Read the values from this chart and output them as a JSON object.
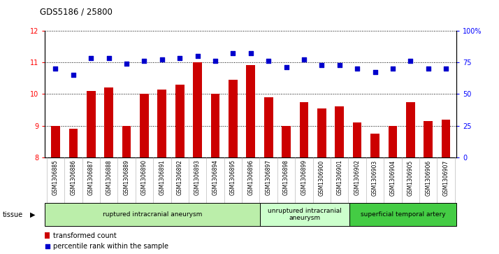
{
  "title": "GDS5186 / 25800",
  "samples": [
    "GSM1306885",
    "GSM1306886",
    "GSM1306887",
    "GSM1306888",
    "GSM1306889",
    "GSM1306890",
    "GSM1306891",
    "GSM1306892",
    "GSM1306893",
    "GSM1306894",
    "GSM1306895",
    "GSM1306896",
    "GSM1306897",
    "GSM1306898",
    "GSM1306899",
    "GSM1306900",
    "GSM1306901",
    "GSM1306902",
    "GSM1306903",
    "GSM1306904",
    "GSM1306905",
    "GSM1306906",
    "GSM1306907"
  ],
  "bar_values": [
    9.0,
    8.9,
    10.1,
    10.2,
    9.0,
    10.0,
    10.15,
    10.3,
    11.0,
    10.0,
    10.45,
    10.9,
    9.9,
    9.0,
    9.75,
    9.55,
    9.6,
    9.1,
    8.75,
    9.0,
    9.75,
    9.15,
    9.2
  ],
  "scatter_values": [
    70,
    65,
    78,
    78,
    74,
    76,
    77,
    78,
    80,
    76,
    82,
    82,
    76,
    71,
    77,
    73,
    73,
    70,
    67,
    70,
    76,
    70,
    70
  ],
  "ylim_left": [
    8,
    12
  ],
  "ylim_right": [
    0,
    100
  ],
  "yticks_left": [
    8,
    9,
    10,
    11,
    12
  ],
  "yticks_right": [
    0,
    25,
    50,
    75,
    100
  ],
  "ytick_labels_right": [
    "0",
    "25",
    "50",
    "75",
    "100%"
  ],
  "bar_color": "#cc0000",
  "scatter_color": "#0000cc",
  "plot_bg": "#ffffff",
  "xtick_bg": "#d8d8d8",
  "groups": [
    {
      "label": "ruptured intracranial aneurysm",
      "start": 0,
      "end": 12,
      "color": "#bbeeaa"
    },
    {
      "label": "unruptured intracranial\naneurysm",
      "start": 12,
      "end": 17,
      "color": "#ccffcc"
    },
    {
      "label": "superficial temporal artery",
      "start": 17,
      "end": 23,
      "color": "#44cc44"
    }
  ],
  "tissue_label": "tissue",
  "legend_bar_label": "transformed count",
  "legend_scatter_label": "percentile rank within the sample"
}
